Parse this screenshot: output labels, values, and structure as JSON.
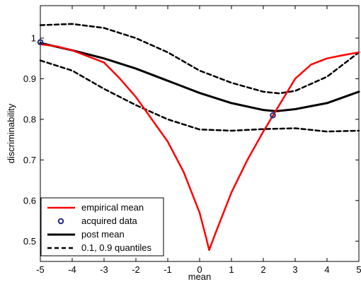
{
  "chart_data": {
    "type": "line",
    "xlabel": "mean",
    "ylabel": "discriminability",
    "xlim": [
      -5,
      5
    ],
    "ylim": [
      0.45,
      1.08
    ],
    "xticks": [
      "-5",
      "-4",
      "-3",
      "-2",
      "-1",
      "0",
      "1",
      "2",
      "3",
      "4",
      "5"
    ],
    "yticks": [
      "0.5",
      "0.6",
      "0.7",
      "0.8",
      "0.9",
      "1"
    ],
    "grid": false,
    "legend_position": "bottom-left",
    "colors": {
      "empirical": "#ff0000",
      "posterior": "#000000",
      "quantiles": "#000000",
      "acquired": "#1f2a8a"
    },
    "series": [
      {
        "name": "empirical mean",
        "style": "solid-red",
        "x": [
          -5,
          -4.5,
          -4,
          -3.5,
          -3,
          -2.5,
          -2,
          -1.5,
          -1,
          -0.5,
          0,
          0.2,
          0.3,
          0.5,
          0.8,
          1,
          1.5,
          2,
          2.5,
          3,
          3.5,
          4,
          4.5,
          5
        ],
        "y": [
          0.985,
          0.98,
          0.97,
          0.955,
          0.94,
          0.9,
          0.855,
          0.8,
          0.745,
          0.67,
          0.57,
          0.51,
          0.478,
          0.52,
          0.58,
          0.62,
          0.7,
          0.77,
          0.835,
          0.9,
          0.935,
          0.95,
          0.958,
          0.965
        ]
      },
      {
        "name": "acquired data",
        "style": "marker",
        "x": [
          -5,
          2.3
        ],
        "y": [
          0.99,
          0.81
        ]
      },
      {
        "name": "post mean",
        "style": "solid-black",
        "x": [
          -5,
          -4,
          -3,
          -2,
          -1,
          0,
          1,
          2,
          2.4,
          3,
          4,
          5
        ],
        "y": [
          0.988,
          0.97,
          0.95,
          0.925,
          0.895,
          0.865,
          0.84,
          0.823,
          0.82,
          0.825,
          0.84,
          0.868
        ]
      },
      {
        "name": "0.1, 0.9 quantiles",
        "style": "dashed-black",
        "x": [
          -5,
          -4,
          -3,
          -2,
          -1,
          0,
          1,
          2,
          2.5,
          3,
          4,
          5
        ],
        "y": [
          1.032,
          1.035,
          1.025,
          1.0,
          0.965,
          0.92,
          0.89,
          0.868,
          0.864,
          0.87,
          0.905,
          0.965
        ]
      },
      {
        "name": "0.1, 0.9 quantiles (lower)",
        "style": "dashed-black",
        "x": [
          -5,
          -4,
          -3,
          -2,
          -1,
          0,
          1,
          2,
          3,
          4,
          5
        ],
        "y": [
          0.945,
          0.92,
          0.875,
          0.835,
          0.8,
          0.775,
          0.772,
          0.776,
          0.778,
          0.77,
          0.772
        ]
      }
    ],
    "legend": [
      {
        "label": "empirical mean",
        "style": "solid-red"
      },
      {
        "label": "acquired data",
        "style": "marker"
      },
      {
        "label": "post mean",
        "style": "solid-black"
      },
      {
        "label": "0.1, 0.9 quantiles",
        "style": "dashed-black"
      }
    ]
  }
}
